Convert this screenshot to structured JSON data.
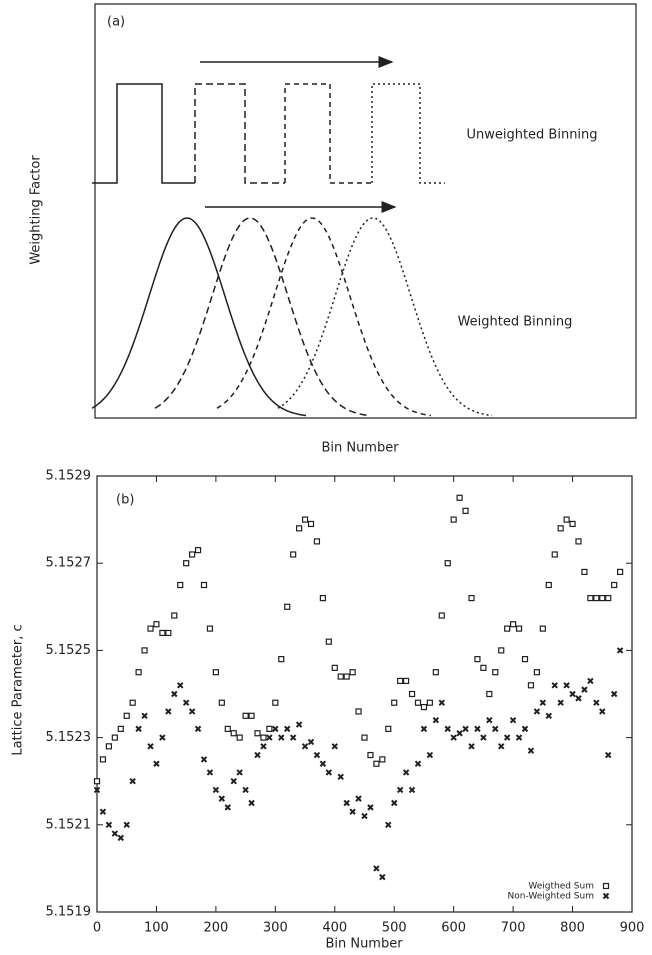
{
  "chart_data": [
    {
      "type": "schematic",
      "label": "(a)",
      "ylabel": "Weighting Factor",
      "xlabel": "Bin Number",
      "annotations": [
        "Unweighted Binning",
        "Weighted Binning"
      ]
    },
    {
      "type": "scatter",
      "label": "(b)",
      "xlabel": "Bin Number",
      "ylabel": "Lattice Parameter, c",
      "xlim": [
        0,
        900
      ],
      "xticks": [
        0,
        100,
        200,
        300,
        400,
        500,
        600,
        700,
        800,
        900
      ],
      "ylim": [
        5.1519,
        5.1529
      ],
      "yticks": [
        5.1519,
        5.1521,
        5.1523,
        5.1525,
        5.1527,
        5.1529
      ],
      "legend": "lower right",
      "x": [
        0,
        10,
        20,
        30,
        40,
        50,
        60,
        70,
        80,
        90,
        100,
        110,
        120,
        130,
        140,
        150,
        160,
        170,
        180,
        190,
        200,
        210,
        220,
        230,
        240,
        250,
        260,
        270,
        280,
        290,
        300,
        310,
        320,
        330,
        340,
        350,
        360,
        370,
        380,
        390,
        400,
        410,
        420,
        430,
        440,
        450,
        460,
        470,
        480,
        490,
        500,
        510,
        520,
        530,
        540,
        550,
        560,
        570,
        580,
        590,
        600,
        610,
        620,
        630,
        640,
        650,
        660,
        670,
        680,
        690,
        700,
        710,
        720,
        730,
        740,
        750,
        760,
        770,
        780,
        790,
        800,
        810,
        820,
        830,
        840,
        850,
        860,
        870,
        880
      ],
      "series": [
        {
          "name": "Weigthed Sum",
          "color": "#231f20",
          "marker": "square",
          "values": [
            5.1522,
            5.15225,
            5.15228,
            5.1523,
            5.15232,
            5.15235,
            5.15238,
            5.15245,
            5.1525,
            5.15255,
            5.15256,
            5.15254,
            5.15254,
            5.15258,
            5.15265,
            5.1527,
            5.15272,
            5.15273,
            5.15265,
            5.15255,
            5.15245,
            5.15238,
            5.15232,
            5.15231,
            5.1523,
            5.15235,
            5.15235,
            5.15231,
            5.1523,
            5.15232,
            5.15238,
            5.15248,
            5.1526,
            5.15272,
            5.15278,
            5.1528,
            5.15279,
            5.15275,
            5.15262,
            5.15252,
            5.15246,
            5.15244,
            5.15244,
            5.15245,
            5.15236,
            5.1523,
            5.15226,
            5.15224,
            5.15225,
            5.15232,
            5.15238,
            5.15243,
            5.15243,
            5.1524,
            5.15238,
            5.15237,
            5.15238,
            5.15245,
            5.15258,
            5.1527,
            5.1528,
            5.15285,
            5.15282,
            5.15262,
            5.15248,
            5.15246,
            5.1524,
            5.15245,
            5.1525,
            5.15255,
            5.15256,
            5.15255,
            5.15248,
            5.15242,
            5.15245,
            5.15255,
            5.15265,
            5.15272,
            5.15278,
            5.1528,
            5.15279,
            5.15275,
            5.15268,
            5.15262,
            5.15262,
            5.15262,
            5.15262,
            5.15265,
            5.15268
          ]
        },
        {
          "name": "Non-Weighted Sum",
          "color": "#231f20",
          "marker": "x",
          "values": [
            5.15218,
            5.15213,
            5.1521,
            5.15208,
            5.15207,
            5.1521,
            5.1522,
            5.15232,
            5.15235,
            5.15228,
            5.15224,
            5.1523,
            5.15236,
            5.1524,
            5.15242,
            5.15238,
            5.15236,
            5.15232,
            5.15225,
            5.15222,
            5.15218,
            5.15216,
            5.15214,
            5.1522,
            5.15222,
            5.15218,
            5.15215,
            5.15226,
            5.15228,
            5.1523,
            5.15232,
            5.1523,
            5.15232,
            5.1523,
            5.15233,
            5.15228,
            5.15229,
            5.15226,
            5.15224,
            5.15222,
            5.15228,
            5.15221,
            5.15215,
            5.15213,
            5.15216,
            5.15212,
            5.15214,
            5.152,
            5.15198,
            5.1521,
            5.15215,
            5.15218,
            5.15222,
            5.15218,
            5.15224,
            5.15232,
            5.15226,
            5.15234,
            5.15238,
            5.15232,
            5.1523,
            5.15231,
            5.15232,
            5.15228,
            5.15232,
            5.1523,
            5.15234,
            5.15232,
            5.15228,
            5.1523,
            5.15234,
            5.1523,
            5.15232,
            5.15227,
            5.15236,
            5.15238,
            5.15235,
            5.15242,
            5.15238,
            5.15242,
            5.1524,
            5.15239,
            5.15241,
            5.15243,
            5.15238,
            5.15236,
            5.15226,
            5.1524,
            5.1525
          ]
        }
      ]
    }
  ]
}
